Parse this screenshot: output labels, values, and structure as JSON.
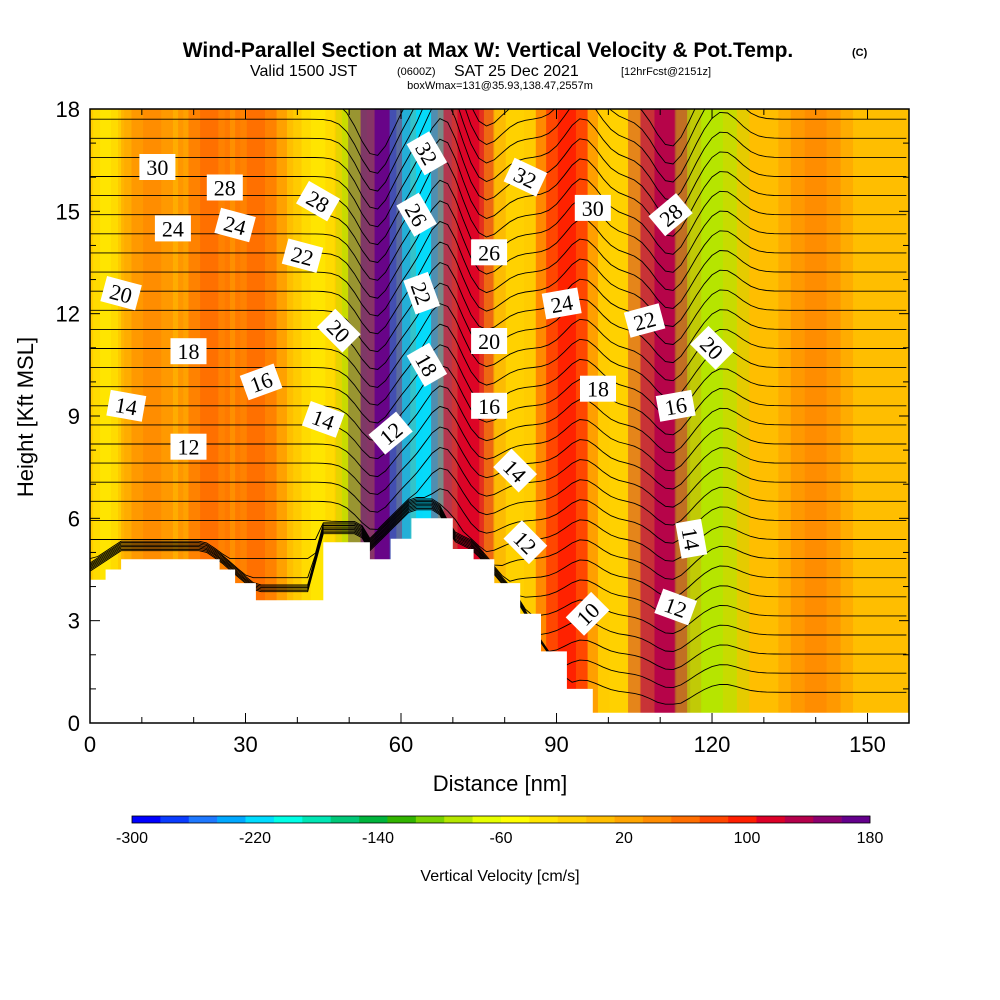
{
  "header": {
    "title_main": "Wind-Parallel Section at Max W: Vertical Velocity & Pot.Temp.",
    "title_c": "(C)",
    "sub_a": "Valid 1500 JST",
    "sub_b": "(0600Z)",
    "sub_c": "SAT 25 Dec 2021",
    "sub_d": "[12hrFcst@2151z]",
    "box": "boxWmax=131@35.93,138.47,2557m"
  },
  "chart_data": {
    "type": "heatmap",
    "xlabel": "Distance [nm]",
    "ylabel": "Height [Kft MSL]",
    "xlim": [
      0,
      158
    ],
    "ylim": [
      0,
      18
    ],
    "x_ticks": [
      "0",
      "30",
      "60",
      "90",
      "120",
      "150"
    ],
    "y_ticks": [
      "0",
      "3",
      "6",
      "9",
      "12",
      "15",
      "18"
    ],
    "colorbar": {
      "label": "Vertical Velocity [cm/s]",
      "tick_labels": [
        "-300",
        "-220",
        "-140",
        "-60",
        "20",
        "100",
        "180"
      ],
      "colors": [
        "#0000ff",
        "#0a3cff",
        "#1e78ff",
        "#00a8ff",
        "#00dcff",
        "#00ffe6",
        "#00e6b4",
        "#00c878",
        "#00b43c",
        "#32b400",
        "#78d200",
        "#b4e600",
        "#e6ff00",
        "#ffff00",
        "#ffe600",
        "#ffd200",
        "#ffbe00",
        "#ffa500",
        "#ff8c00",
        "#ff6e00",
        "#ff4600",
        "#ff1e00",
        "#dc0028",
        "#b4004b",
        "#8c006e",
        "#64008c"
      ]
    },
    "terrain": [
      [
        0,
        4.2
      ],
      [
        3,
        4.5
      ],
      [
        6,
        4.8
      ],
      [
        22,
        4.8
      ],
      [
        25,
        4.5
      ],
      [
        28,
        4.1
      ],
      [
        32,
        3.6
      ],
      [
        42,
        3.6
      ],
      [
        45,
        5.3
      ],
      [
        52,
        5.3
      ],
      [
        54,
        4.8
      ],
      [
        58,
        5.4
      ],
      [
        62,
        6.0
      ],
      [
        67,
        6.0
      ],
      [
        70,
        5.1
      ],
      [
        74,
        4.8
      ],
      [
        78,
        4.1
      ],
      [
        83,
        3.2
      ],
      [
        87,
        2.1
      ],
      [
        92,
        1.0
      ],
      [
        97,
        0.3
      ],
      [
        103,
        0.3
      ],
      [
        108,
        0.3
      ],
      [
        158,
        0.3
      ]
    ],
    "vertical_velocity_bands": [
      {
        "x": 3,
        "w": 3,
        "value": -40
      },
      {
        "x": 12,
        "w": 5,
        "value": 40
      },
      {
        "x": 23,
        "w": 5,
        "value": 60
      },
      {
        "x": 32,
        "w": 5,
        "value": 60
      },
      {
        "x": 44,
        "w": 4,
        "value": -40
      },
      {
        "x": 51,
        "w": 3,
        "value": -80
      },
      {
        "x": 57,
        "w": 6,
        "value": 180
      },
      {
        "x": 65,
        "w": 6,
        "value": -220
      },
      {
        "x": 73,
        "w": 6,
        "value": 120
      },
      {
        "x": 82,
        "w": 5,
        "value": -20
      },
      {
        "x": 92,
        "w": 5,
        "value": 100
      },
      {
        "x": 102,
        "w": 5,
        "value": -20
      },
      {
        "x": 111,
        "w": 6,
        "value": 140
      },
      {
        "x": 120,
        "w": 6,
        "value": -80
      },
      {
        "x": 140,
        "w": 6,
        "value": 40
      }
    ],
    "potential_temperature_labels": [
      {
        "text": "30",
        "x": 13,
        "y": 16.3,
        "angle": 0
      },
      {
        "text": "28",
        "x": 26,
        "y": 15.7,
        "angle": 0
      },
      {
        "text": "28",
        "x": 44,
        "y": 15.3,
        "angle": 30
      },
      {
        "text": "32",
        "x": 65,
        "y": 16.7,
        "angle": 60
      },
      {
        "text": "32",
        "x": 84,
        "y": 16.0,
        "angle": 25
      },
      {
        "text": "30",
        "x": 97,
        "y": 15.1,
        "angle": 0
      },
      {
        "text": "28",
        "x": 112,
        "y": 14.9,
        "angle": -40
      },
      {
        "text": "24",
        "x": 16,
        "y": 14.5,
        "angle": 0
      },
      {
        "text": "24",
        "x": 28,
        "y": 14.6,
        "angle": 15
      },
      {
        "text": "26",
        "x": 63,
        "y": 14.9,
        "angle": 60
      },
      {
        "text": "26",
        "x": 77,
        "y": 13.8,
        "angle": 0
      },
      {
        "text": "22",
        "x": 41,
        "y": 13.7,
        "angle": 15
      },
      {
        "text": "22",
        "x": 64,
        "y": 12.6,
        "angle": 70
      },
      {
        "text": "24",
        "x": 91,
        "y": 12.3,
        "angle": -10
      },
      {
        "text": "22",
        "x": 107,
        "y": 11.8,
        "angle": -15
      },
      {
        "text": "20",
        "x": 6,
        "y": 12.6,
        "angle": 15
      },
      {
        "text": "20",
        "x": 48,
        "y": 11.5,
        "angle": 45
      },
      {
        "text": "20",
        "x": 77,
        "y": 11.2,
        "angle": 0
      },
      {
        "text": "20",
        "x": 120,
        "y": 11.0,
        "angle": 45
      },
      {
        "text": "18",
        "x": 19,
        "y": 10.9,
        "angle": 0
      },
      {
        "text": "18",
        "x": 65,
        "y": 10.5,
        "angle": 60
      },
      {
        "text": "18",
        "x": 98,
        "y": 9.8,
        "angle": 0
      },
      {
        "text": "16",
        "x": 33,
        "y": 10.0,
        "angle": -20
      },
      {
        "text": "16",
        "x": 77,
        "y": 9.3,
        "angle": 0
      },
      {
        "text": "16",
        "x": 113,
        "y": 9.3,
        "angle": -10
      },
      {
        "text": "14",
        "x": 7,
        "y": 9.3,
        "angle": 10
      },
      {
        "text": "14",
        "x": 45,
        "y": 8.9,
        "angle": 20
      },
      {
        "text": "14",
        "x": 82,
        "y": 7.4,
        "angle": 45
      },
      {
        "text": "14",
        "x": 116,
        "y": 5.4,
        "angle": 80
      },
      {
        "text": "12",
        "x": 19,
        "y": 8.1,
        "angle": 0
      },
      {
        "text": "12",
        "x": 58,
        "y": 8.5,
        "angle": -40
      },
      {
        "text": "12",
        "x": 84,
        "y": 5.3,
        "angle": 45
      },
      {
        "text": "12",
        "x": 113,
        "y": 3.4,
        "angle": 20
      },
      {
        "text": "10",
        "x": 96,
        "y": 3.2,
        "angle": -45
      }
    ]
  }
}
